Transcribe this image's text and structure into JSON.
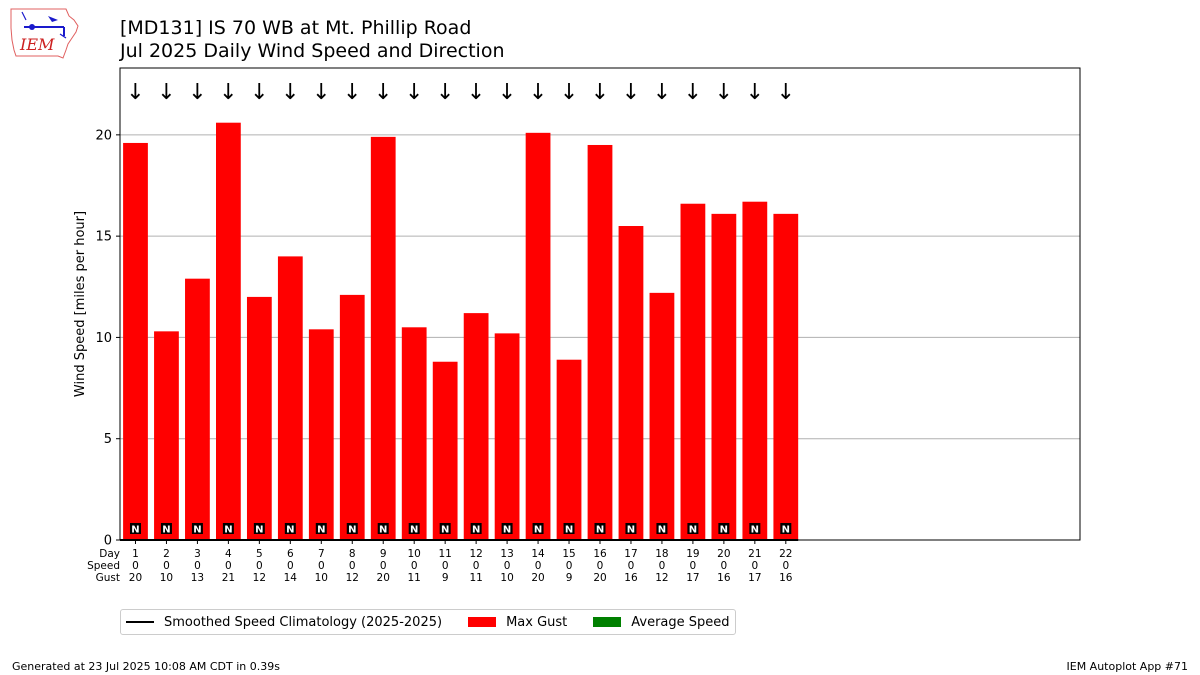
{
  "logo": {
    "text": "IEM"
  },
  "title": {
    "line1": "[MD131] IS 70 WB at Mt. Phillip Road",
    "line2": "Jul 2025 Daily Wind Speed and Direction"
  },
  "chart_data": {
    "type": "bar",
    "ylabel": "Wind Speed [miles per hour]",
    "xlabel": "",
    "ylim": [
      0,
      23.3
    ],
    "xlim_days": [
      0.5,
      31.5
    ],
    "yticks": [
      0,
      5,
      10,
      15,
      20
    ],
    "grid": "horizontal",
    "row_labels": [
      "Day",
      "Speed",
      "Gust"
    ],
    "days": [
      1,
      2,
      3,
      4,
      5,
      6,
      7,
      8,
      9,
      10,
      11,
      12,
      13,
      14,
      15,
      16,
      17,
      18,
      19,
      20,
      21,
      22
    ],
    "series": [
      {
        "name": "Max Gust",
        "color": "#ff0000",
        "values": [
          19.6,
          10.3,
          12.9,
          20.6,
          12.0,
          14.0,
          10.4,
          12.1,
          19.9,
          10.5,
          8.8,
          11.2,
          10.2,
          20.1,
          8.9,
          19.5,
          15.5,
          12.2,
          16.6,
          16.1,
          16.7,
          16.1
        ]
      },
      {
        "name": "Average Speed",
        "color": "#008000",
        "values": [
          0,
          0,
          0,
          0,
          0,
          0,
          0,
          0,
          0,
          0,
          0,
          0,
          0,
          0,
          0,
          0,
          0,
          0,
          0,
          0,
          0,
          0
        ]
      }
    ],
    "speed_labels": [
      "0",
      "0",
      "0",
      "0",
      "0",
      "0",
      "0",
      "0",
      "0",
      "0",
      "0",
      "0",
      "0",
      "0",
      "0",
      "0",
      "0",
      "0",
      "0",
      "0",
      "0",
      "0"
    ],
    "gust_labels": [
      "20",
      "10",
      "13",
      "21",
      "12",
      "14",
      "10",
      "12",
      "20",
      "11",
      "9",
      "11",
      "10",
      "20",
      "9",
      "20",
      "16",
      "12",
      "17",
      "16",
      "17",
      "16"
    ],
    "direction_arrows": [
      "↓",
      "↓",
      "↓",
      "↓",
      "↓",
      "↓",
      "↓",
      "↓",
      "↓",
      "↓",
      "↓",
      "↓",
      "↓",
      "↓",
      "↓",
      "↓",
      "↓",
      "↓",
      "↓",
      "↓",
      "↓",
      "↓"
    ],
    "direction_labels": [
      "N",
      "N",
      "N",
      "N",
      "N",
      "N",
      "N",
      "N",
      "N",
      "N",
      "N",
      "N",
      "N",
      "N",
      "N",
      "N",
      "N",
      "N",
      "N",
      "N",
      "N",
      "N"
    ],
    "legend_position": "bottom"
  },
  "legend": {
    "items": [
      {
        "label": "Smoothed Speed Climatology (2025-2025)",
        "kind": "line",
        "color": "#000000"
      },
      {
        "label": "Max Gust",
        "kind": "box",
        "color": "#ff0000"
      },
      {
        "label": "Average Speed",
        "kind": "box",
        "color": "#008000"
      }
    ]
  },
  "footer": {
    "left": "Generated at 23 Jul 2025 10:08 AM CDT in 0.39s",
    "right": "IEM Autoplot App #71"
  }
}
